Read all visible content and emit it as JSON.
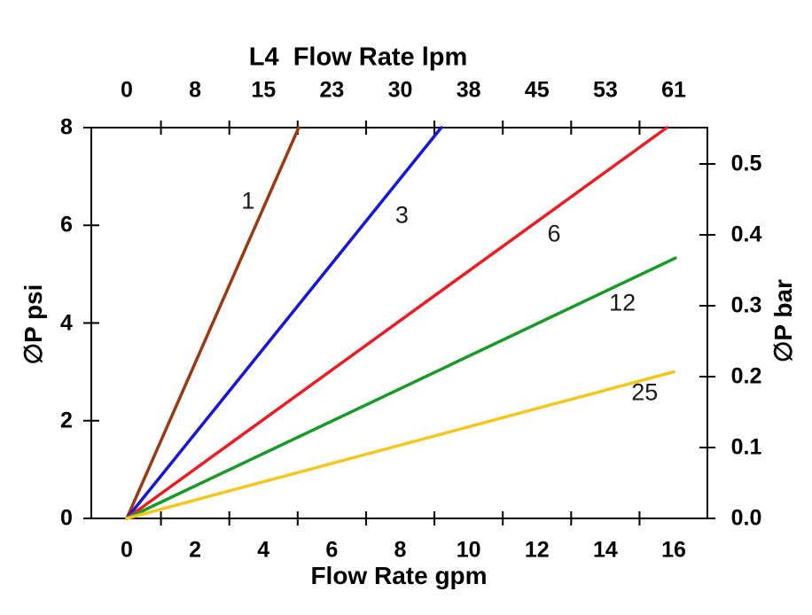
{
  "page": {
    "background": "#ffffff",
    "axis_color": "#000000"
  },
  "chart_data": {
    "type": "line",
    "title": "L4  Flow Rate lpm",
    "axes": {
      "top": {
        "label": "L4  Flow Rate lpm",
        "unit": "lpm",
        "tick_labels": [
          "0",
          "8",
          "15",
          "23",
          "30",
          "38",
          "45",
          "53",
          "61"
        ],
        "tick_positions_gpm": [
          0,
          2,
          4,
          6,
          8,
          10,
          12,
          14,
          16
        ],
        "minor_ticks_gpm": [
          1,
          3,
          5,
          7,
          9,
          11,
          13,
          15
        ]
      },
      "bottom": {
        "label": "Flow Rate gpm",
        "unit": "gpm",
        "labeled_ticks_gpm": [
          0,
          2,
          4,
          6,
          8,
          10,
          12,
          14,
          16
        ],
        "minor_ticks_gpm": [
          1,
          3,
          5,
          7,
          9,
          11,
          13,
          15
        ],
        "data_range_gpm": [
          0,
          16
        ]
      },
      "left": {
        "label": "∅P psi",
        "unit": "psi",
        "ticks_psi": [
          0,
          2,
          4,
          6,
          8
        ],
        "range_psi": [
          0,
          8
        ]
      },
      "right": {
        "label": "∅P bar",
        "unit": "bar",
        "ticks_bar": [
          "0.0",
          "0.1",
          "0.2",
          "0.3",
          "0.4",
          "0.5"
        ]
      }
    },
    "series": [
      {
        "name": "1",
        "color": "#9b3a12",
        "points_gpm_psi": [
          [
            0,
            0
          ],
          [
            5.03,
            8.0
          ]
        ],
        "label": {
          "text": "1",
          "gpm": 3.55,
          "psi": 6.5
        }
      },
      {
        "name": "3",
        "color": "#1616d9",
        "points_gpm_psi": [
          [
            0,
            0
          ],
          [
            9.2,
            8.0
          ]
        ],
        "label": {
          "text": "3",
          "gpm": 8.05,
          "psi": 6.2
        }
      },
      {
        "name": "6",
        "color": "#ec1c24",
        "points_gpm_psi": [
          [
            0,
            0
          ],
          [
            15.8,
            8.0
          ]
        ],
        "label": {
          "text": "6",
          "gpm": 12.5,
          "psi": 5.83
        }
      },
      {
        "name": "12",
        "color": "#189a28",
        "points_gpm_psi": [
          [
            0,
            0
          ],
          [
            16.05,
            5.33
          ]
        ],
        "label": {
          "text": "12",
          "gpm": 14.5,
          "psi": 4.4
        }
      },
      {
        "name": "25",
        "color": "#f5c71e",
        "points_gpm_psi": [
          [
            0,
            0
          ],
          [
            16.0,
            3.0
          ]
        ],
        "label": {
          "text": "25",
          "gpm": 15.15,
          "psi": 2.57
        }
      }
    ]
  }
}
